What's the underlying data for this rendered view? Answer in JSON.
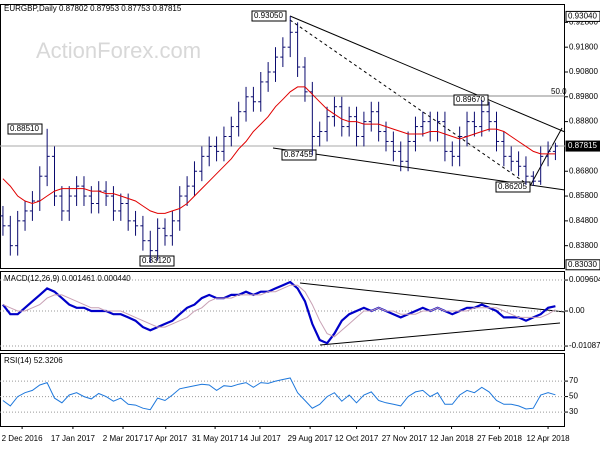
{
  "chart_data": [
    {
      "type": "ohlc",
      "title": "EURGBP,Daily  0.87802 0.87953 0.87753 0.87815",
      "watermark": "ActionForex.com",
      "annotations": [
        "0.93050",
        "0.88510",
        "0.87455",
        "0.89670",
        "0.86205",
        "0.83120",
        "50.0"
      ],
      "color": "#0a0a6e",
      "xlim": [
        -0.4,
        76.3
      ],
      "ylim": [
        0.829,
        0.935
      ],
      "yticks": [
        {
          "value": 0.928,
          "label": "0.92800"
        },
        {
          "value": 0.918,
          "label": "0.91800"
        },
        {
          "value": 0.908,
          "label": "0.90800"
        },
        {
          "value": 0.898,
          "label": "0.89800"
        },
        {
          "value": 0.888,
          "label": "0.88800"
        },
        {
          "value": 0.868,
          "label": "0.86800"
        },
        {
          "value": 0.858,
          "label": "0.85800"
        },
        {
          "value": 0.848,
          "label": "0.84800"
        },
        {
          "value": 0.838,
          "label": "0.83800"
        }
      ],
      "price_markers": [
        {
          "value": 0.9304,
          "label": "0.93040"
        },
        {
          "value": 0.87815,
          "label": "0.87815"
        },
        {
          "value": 0.8303,
          "label": "0.83030"
        }
      ],
      "open": [
        0.85,
        0.846,
        0.838,
        0.848,
        0.852,
        0.856,
        0.866,
        0.874,
        0.858,
        0.852,
        0.858,
        0.862,
        0.858,
        0.855,
        0.86,
        0.858,
        0.852,
        0.855,
        0.848,
        0.846,
        0.84,
        0.836,
        0.845,
        0.842,
        0.848,
        0.858,
        0.862,
        0.868,
        0.874,
        0.878,
        0.876,
        0.882,
        0.886,
        0.892,
        0.898,
        0.896,
        0.904,
        0.908,
        0.914,
        0.918,
        0.924,
        0.91,
        0.9,
        0.882,
        0.884,
        0.89,
        0.894,
        0.886,
        0.89,
        0.882,
        0.888,
        0.892,
        0.884,
        0.88,
        0.876,
        0.872,
        0.88,
        0.886,
        0.888,
        0.884,
        0.888,
        0.876,
        0.874,
        0.882,
        0.888,
        0.886,
        0.892,
        0.888,
        0.88,
        0.874,
        0.872,
        0.87,
        0.866,
        0.864,
        0.874,
        0.876
      ],
      "high": [
        0.854,
        0.85,
        0.852,
        0.856,
        0.86,
        0.87,
        0.8851,
        0.878,
        0.862,
        0.862,
        0.866,
        0.866,
        0.862,
        0.864,
        0.864,
        0.862,
        0.859,
        0.859,
        0.852,
        0.85,
        0.844,
        0.849,
        0.849,
        0.852,
        0.862,
        0.866,
        0.872,
        0.878,
        0.882,
        0.882,
        0.886,
        0.89,
        0.896,
        0.902,
        0.902,
        0.908,
        0.912,
        0.918,
        0.922,
        0.9305,
        0.928,
        0.914,
        0.904,
        0.888,
        0.894,
        0.898,
        0.898,
        0.894,
        0.894,
        0.892,
        0.896,
        0.896,
        0.888,
        0.884,
        0.88,
        0.884,
        0.89,
        0.892,
        0.892,
        0.892,
        0.892,
        0.88,
        0.886,
        0.892,
        0.892,
        0.8967,
        0.896,
        0.892,
        0.884,
        0.878,
        0.876,
        0.874,
        0.868,
        0.878,
        0.88,
        0.8795
      ],
      "low": [
        0.842,
        0.834,
        0.834,
        0.844,
        0.848,
        0.852,
        0.862,
        0.854,
        0.848,
        0.848,
        0.854,
        0.854,
        0.851,
        0.851,
        0.854,
        0.848,
        0.848,
        0.844,
        0.842,
        0.836,
        0.8312,
        0.832,
        0.838,
        0.838,
        0.844,
        0.854,
        0.858,
        0.864,
        0.87,
        0.872,
        0.872,
        0.878,
        0.882,
        0.888,
        0.892,
        0.892,
        0.9,
        0.904,
        0.91,
        0.914,
        0.906,
        0.896,
        0.8746,
        0.878,
        0.88,
        0.886,
        0.882,
        0.882,
        0.878,
        0.878,
        0.884,
        0.88,
        0.876,
        0.872,
        0.868,
        0.868,
        0.876,
        0.882,
        0.88,
        0.88,
        0.872,
        0.87,
        0.87,
        0.878,
        0.882,
        0.882,
        0.884,
        0.876,
        0.87,
        0.868,
        0.866,
        0.8625,
        0.8621,
        0.8625,
        0.87,
        0.8725
      ],
      "close": [
        0.846,
        0.838,
        0.848,
        0.852,
        0.856,
        0.866,
        0.874,
        0.858,
        0.852,
        0.858,
        0.862,
        0.858,
        0.855,
        0.86,
        0.858,
        0.852,
        0.855,
        0.848,
        0.846,
        0.84,
        0.836,
        0.845,
        0.842,
        0.848,
        0.858,
        0.862,
        0.868,
        0.874,
        0.878,
        0.876,
        0.882,
        0.886,
        0.892,
        0.898,
        0.896,
        0.904,
        0.908,
        0.914,
        0.918,
        0.924,
        0.91,
        0.9,
        0.882,
        0.884,
        0.89,
        0.894,
        0.886,
        0.89,
        0.882,
        0.888,
        0.892,
        0.884,
        0.88,
        0.876,
        0.872,
        0.88,
        0.886,
        0.888,
        0.884,
        0.888,
        0.876,
        0.874,
        0.882,
        0.888,
        0.886,
        0.892,
        0.888,
        0.88,
        0.874,
        0.872,
        0.87,
        0.866,
        0.864,
        0.874,
        0.876,
        0.87815
      ],
      "series": [
        {
          "color": "#e00000",
          "values": [
            0.865,
            0.862,
            0.858,
            0.856,
            0.855,
            0.856,
            0.858,
            0.86,
            0.861,
            0.861,
            0.861,
            0.861,
            0.86,
            0.86,
            0.859,
            0.859,
            0.858,
            0.857,
            0.856,
            0.854,
            0.852,
            0.851,
            0.851,
            0.852,
            0.853,
            0.855,
            0.858,
            0.861,
            0.864,
            0.867,
            0.87,
            0.873,
            0.877,
            0.88,
            0.884,
            0.887,
            0.89,
            0.894,
            0.897,
            0.9,
            0.902,
            0.902,
            0.899,
            0.896,
            0.893,
            0.891,
            0.889,
            0.888,
            0.888,
            0.887,
            0.887,
            0.887,
            0.886,
            0.885,
            0.884,
            0.883,
            0.883,
            0.883,
            0.884,
            0.884,
            0.883,
            0.882,
            0.881,
            0.882,
            0.883,
            0.884,
            0.885,
            0.885,
            0.884,
            0.882,
            0.88,
            0.878,
            0.876,
            0.875,
            0.875,
            0.875
          ]
        }
      ]
    },
    {
      "type": "line",
      "title": "MACD(12,26,9) 0.001461 0.000440",
      "xlim": [
        -0.4,
        76.3
      ],
      "ylim": [
        -0.0121,
        0.0121
      ],
      "yticks": [
        0.009604,
        {
          "value": 0,
          "label": "0.00"
        },
        -0.010873
      ],
      "series": [
        {
          "color": "#0000c8",
          "width": 2.2,
          "values": [
            0.002,
            -0.001,
            -0.001,
            0.001,
            0.003,
            0.005,
            0.007,
            0.006,
            0.004,
            0.002,
            0.001,
            0.001,
            0.0,
            0.0,
            0.0,
            -0.001,
            -0.001,
            -0.002,
            -0.003,
            -0.005,
            -0.006,
            -0.005,
            -0.004,
            -0.003,
            -0.001,
            0.001,
            0.002,
            0.004,
            0.005,
            0.004,
            0.004,
            0.005,
            0.005,
            0.006,
            0.005,
            0.006,
            0.006,
            0.007,
            0.008,
            0.009,
            0.007,
            0.003,
            -0.004,
            -0.009,
            -0.01,
            -0.007,
            -0.003,
            -0.001,
            0.0,
            0.001,
            0.0,
            0.001,
            0.0,
            -0.001,
            -0.002,
            -0.001,
            0.0,
            0.001,
            0.0,
            0.001,
            0.0,
            -0.001,
            0.0,
            0.001,
            0.001,
            0.002,
            0.001,
            0.0,
            -0.002,
            -0.002,
            -0.002,
            -0.003,
            -0.002,
            -0.001,
            0.001,
            0.0015
          ]
        },
        {
          "color": "#c8a0b4",
          "width": 1,
          "values": [
            0.002,
            0.001,
            0.0,
            0.0,
            0.001,
            0.002,
            0.004,
            0.005,
            0.005,
            0.004,
            0.003,
            0.002,
            0.001,
            0.001,
            0.0,
            0.0,
            0.0,
            -0.001,
            -0.002,
            -0.003,
            -0.004,
            -0.005,
            -0.005,
            -0.004,
            -0.003,
            -0.002,
            0.0,
            0.001,
            0.003,
            0.004,
            0.004,
            0.004,
            0.005,
            0.005,
            0.005,
            0.005,
            0.006,
            0.006,
            0.007,
            0.008,
            0.008,
            0.006,
            0.002,
            -0.003,
            -0.007,
            -0.008,
            -0.006,
            -0.004,
            -0.002,
            0.0,
            0.0,
            0.001,
            0.0,
            0.0,
            -0.001,
            -0.001,
            -0.001,
            0.0,
            0.0,
            0.001,
            0.0,
            0.0,
            0.0,
            0.0,
            0.001,
            0.001,
            0.001,
            0.001,
            0.0,
            -0.001,
            -0.002,
            -0.002,
            -0.002,
            -0.002,
            -0.001,
            0.0004
          ]
        }
      ]
    },
    {
      "type": "line",
      "title": "RSI(14) 52.3206",
      "xlim": [
        -0.4,
        76.3
      ],
      "ylim": [
        12,
        105
      ],
      "yticks": [
        70,
        50,
        30
      ],
      "xticks": [
        {
          "value": 2.6,
          "label": "2 Dec 2016"
        },
        {
          "value": 9.5,
          "label": "17 Jan 2017"
        },
        {
          "value": 16.3,
          "label": "2 Mar 2017"
        },
        {
          "value": 22.1,
          "label": "17 Apr 2017"
        },
        {
          "value": 28.8,
          "label": "31 May 2017"
        },
        {
          "value": 34.9,
          "label": "14 Jul 2017"
        },
        {
          "value": 41.7,
          "label": "29 Aug 2017"
        },
        {
          "value": 48,
          "label": "12 Oct 2017"
        },
        {
          "value": 54.5,
          "label": "27 Nov 2017"
        },
        {
          "value": 60.9,
          "label": "12 Jan 2018"
        },
        {
          "value": 67.4,
          "label": "27 Feb 2018"
        },
        {
          "value": 74,
          "label": "12 Apr 2018"
        }
      ],
      "series": [
        {
          "color": "#1e78dc",
          "width": 1,
          "values": [
            45,
            38,
            50,
            55,
            58,
            65,
            68,
            48,
            42,
            52,
            55,
            50,
            47,
            54,
            50,
            44,
            48,
            40,
            39,
            35,
            33,
            48,
            45,
            52,
            60,
            62,
            64,
            66,
            65,
            58,
            64,
            63,
            66,
            68,
            62,
            68,
            67,
            70,
            72,
            74,
            55,
            45,
            35,
            40,
            50,
            55,
            44,
            52,
            42,
            52,
            56,
            45,
            42,
            40,
            38,
            50,
            56,
            58,
            50,
            55,
            40,
            40,
            52,
            58,
            55,
            62,
            56,
            45,
            40,
            40,
            38,
            34,
            35,
            52,
            55,
            52.32
          ]
        }
      ]
    }
  ]
}
